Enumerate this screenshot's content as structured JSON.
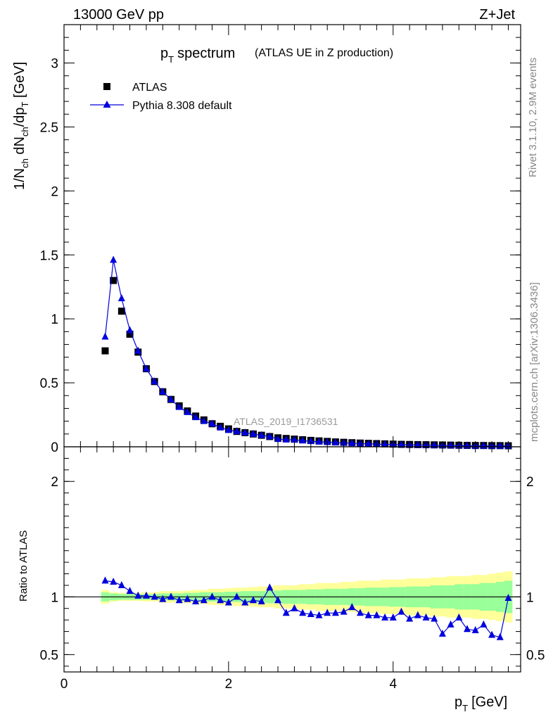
{
  "header": {
    "energy_label": "13000 GeV pp",
    "process_label": "Z+Jet",
    "rivet_label": "Rivet 3.1.10,  2.9M events",
    "mcplots_label": "mcplots.cern.ch [arXiv:1306.3436]",
    "analysis_label": "ATLAS_2019_I1736531"
  },
  "chart_data": [
    {
      "type": "line",
      "title": "p_T spectrum",
      "title_main": "p",
      "title_sub": "T",
      "title_rest": "spectrum",
      "subtitle": "(ATLAS UE in Z production)",
      "ylabel": "1/N_ch dN_ch/dp_T [GeV]",
      "xlim": [
        0,
        5.55
      ],
      "ylim": [
        0,
        3.3
      ],
      "y_ticks": [
        "0",
        "0.5",
        "1",
        "1.5",
        "2",
        "2.5",
        "3"
      ],
      "legend_position": "top-left",
      "series": [
        {
          "name": "ATLAS",
          "marker": "square",
          "color": "#000000",
          "x": [
            0.5,
            0.6,
            0.7,
            0.8,
            0.9,
            1.0,
            1.1,
            1.2,
            1.3,
            1.4,
            1.5,
            1.6,
            1.7,
            1.8,
            1.9,
            2.0,
            2.1,
            2.2,
            2.3,
            2.4,
            2.5,
            2.6,
            2.7,
            2.8,
            2.9,
            3.0,
            3.1,
            3.2,
            3.3,
            3.4,
            3.5,
            3.6,
            3.7,
            3.8,
            3.9,
            4.0,
            4.1,
            4.2,
            4.3,
            4.4,
            4.5,
            4.6,
            4.7,
            4.8,
            4.9,
            5.0,
            5.1,
            5.2,
            5.3,
            5.4
          ],
          "y": [
            0.75,
            1.3,
            1.06,
            0.88,
            0.74,
            0.61,
            0.51,
            0.43,
            0.37,
            0.32,
            0.28,
            0.24,
            0.21,
            0.18,
            0.16,
            0.14,
            0.12,
            0.11,
            0.1,
            0.09,
            0.08,
            0.07,
            0.065,
            0.06,
            0.055,
            0.05,
            0.046,
            0.042,
            0.038,
            0.035,
            0.032,
            0.029,
            0.027,
            0.025,
            0.023,
            0.021,
            0.019,
            0.018,
            0.017,
            0.016,
            0.015,
            0.014,
            0.013,
            0.012,
            0.011,
            0.01,
            0.01,
            0.009,
            0.009,
            0.008
          ]
        },
        {
          "name": "Pythia 8.308 default",
          "marker": "triangle",
          "color": "#0000dd",
          "x": [
            0.5,
            0.6,
            0.7,
            0.8,
            0.9,
            1.0,
            1.1,
            1.2,
            1.3,
            1.4,
            1.5,
            1.6,
            1.7,
            1.8,
            1.9,
            2.0,
            2.1,
            2.2,
            2.3,
            2.4,
            2.5,
            2.6,
            2.7,
            2.8,
            2.9,
            3.0,
            3.1,
            3.2,
            3.3,
            3.4,
            3.5,
            3.6,
            3.7,
            3.8,
            3.9,
            4.0,
            4.1,
            4.2,
            4.3,
            4.4,
            4.5,
            4.6,
            4.7,
            4.8,
            4.9,
            5.0,
            5.1,
            5.2,
            5.3,
            5.4
          ],
          "y": [
            0.86,
            1.46,
            1.16,
            0.91,
            0.75,
            0.61,
            0.51,
            0.43,
            0.37,
            0.31,
            0.27,
            0.23,
            0.2,
            0.18,
            0.15,
            0.13,
            0.12,
            0.11,
            0.1,
            0.09,
            0.08,
            0.06,
            0.056,
            0.054,
            0.048,
            0.043,
            0.039,
            0.036,
            0.033,
            0.03,
            0.028,
            0.025,
            0.023,
            0.021,
            0.019,
            0.018,
            0.016,
            0.015,
            0.014,
            0.013,
            0.012,
            0.01,
            0.01,
            0.009,
            0.008,
            0.007,
            0.007,
            0.006,
            0.006,
            0.007
          ]
        }
      ]
    },
    {
      "type": "line",
      "xlabel": "p_T [GeV]",
      "xlabel_main": "p",
      "xlabel_sub": "T",
      "xlabel_rest": "[GeV]",
      "ylabel": "Ratio to ATLAS",
      "xlim": [
        0,
        5.55
      ],
      "x_ticks": [
        "0",
        "2",
        "4"
      ],
      "ylim": [
        0.35,
        2.3
      ],
      "y_ticks": [
        "0.5",
        "1",
        "2"
      ],
      "reference_line": 1,
      "bands": {
        "x": [
          0.5,
          0.6,
          0.7,
          0.8,
          0.9,
          1.0,
          1.1,
          1.2,
          1.3,
          1.4,
          1.5,
          1.6,
          1.7,
          1.8,
          1.9,
          2.0,
          2.1,
          2.2,
          2.3,
          2.4,
          2.5,
          2.6,
          2.7,
          2.8,
          2.9,
          3.0,
          3.1,
          3.2,
          3.3,
          3.4,
          3.5,
          3.6,
          3.7,
          3.8,
          3.9,
          4.0,
          4.1,
          4.2,
          4.3,
          4.4,
          4.5,
          4.6,
          4.7,
          4.8,
          4.9,
          5.0,
          5.1,
          5.2,
          5.3,
          5.4
        ],
        "green": [
          0.04,
          0.03,
          0.025,
          0.025,
          0.025,
          0.025,
          0.025,
          0.03,
          0.03,
          0.03,
          0.035,
          0.035,
          0.04,
          0.04,
          0.04,
          0.045,
          0.045,
          0.05,
          0.05,
          0.05,
          0.055,
          0.055,
          0.06,
          0.06,
          0.06,
          0.065,
          0.065,
          0.07,
          0.07,
          0.07,
          0.075,
          0.075,
          0.08,
          0.08,
          0.08,
          0.085,
          0.085,
          0.09,
          0.09,
          0.09,
          0.1,
          0.1,
          0.1,
          0.11,
          0.11,
          0.11,
          0.12,
          0.12,
          0.13,
          0.14
        ],
        "yellow": [
          0.06,
          0.04,
          0.035,
          0.035,
          0.035,
          0.04,
          0.04,
          0.05,
          0.05,
          0.05,
          0.055,
          0.06,
          0.06,
          0.07,
          0.07,
          0.075,
          0.08,
          0.08,
          0.085,
          0.09,
          0.09,
          0.1,
          0.1,
          0.1,
          0.11,
          0.11,
          0.12,
          0.12,
          0.12,
          0.13,
          0.13,
          0.14,
          0.14,
          0.14,
          0.15,
          0.15,
          0.15,
          0.16,
          0.16,
          0.16,
          0.17,
          0.17,
          0.18,
          0.18,
          0.18,
          0.19,
          0.19,
          0.2,
          0.21,
          0.22
        ],
        "green_color": "#99ff99",
        "yellow_color": "#ffff99"
      },
      "series": [
        {
          "name": "Pythia 8.308 default",
          "marker": "triangle",
          "color": "#0000dd",
          "x": [
            0.5,
            0.6,
            0.7,
            0.8,
            0.9,
            1.0,
            1.1,
            1.2,
            1.3,
            1.4,
            1.5,
            1.6,
            1.7,
            1.8,
            1.9,
            2.0,
            2.1,
            2.2,
            2.3,
            2.4,
            2.5,
            2.6,
            2.7,
            2.8,
            2.9,
            3.0,
            3.1,
            3.2,
            3.3,
            3.4,
            3.5,
            3.6,
            3.7,
            3.8,
            3.9,
            4.0,
            4.1,
            4.2,
            4.3,
            4.4,
            4.5,
            4.6,
            4.7,
            4.8,
            4.9,
            5.0,
            5.1,
            5.2,
            5.3,
            5.4
          ],
          "y": [
            1.14,
            1.13,
            1.1,
            1.05,
            1.01,
            1.01,
            1.0,
            0.98,
            1.0,
            0.97,
            0.98,
            0.96,
            0.97,
            1.0,
            0.97,
            0.95,
            1.0,
            0.95,
            0.97,
            0.96,
            1.08,
            0.97,
            0.86,
            0.9,
            0.86,
            0.85,
            0.84,
            0.86,
            0.86,
            0.87,
            0.91,
            0.86,
            0.84,
            0.84,
            0.82,
            0.82,
            0.87,
            0.81,
            0.84,
            0.82,
            0.81,
            0.68,
            0.76,
            0.82,
            0.72,
            0.71,
            0.76,
            0.67,
            0.65,
            0.99
          ]
        }
      ]
    }
  ]
}
